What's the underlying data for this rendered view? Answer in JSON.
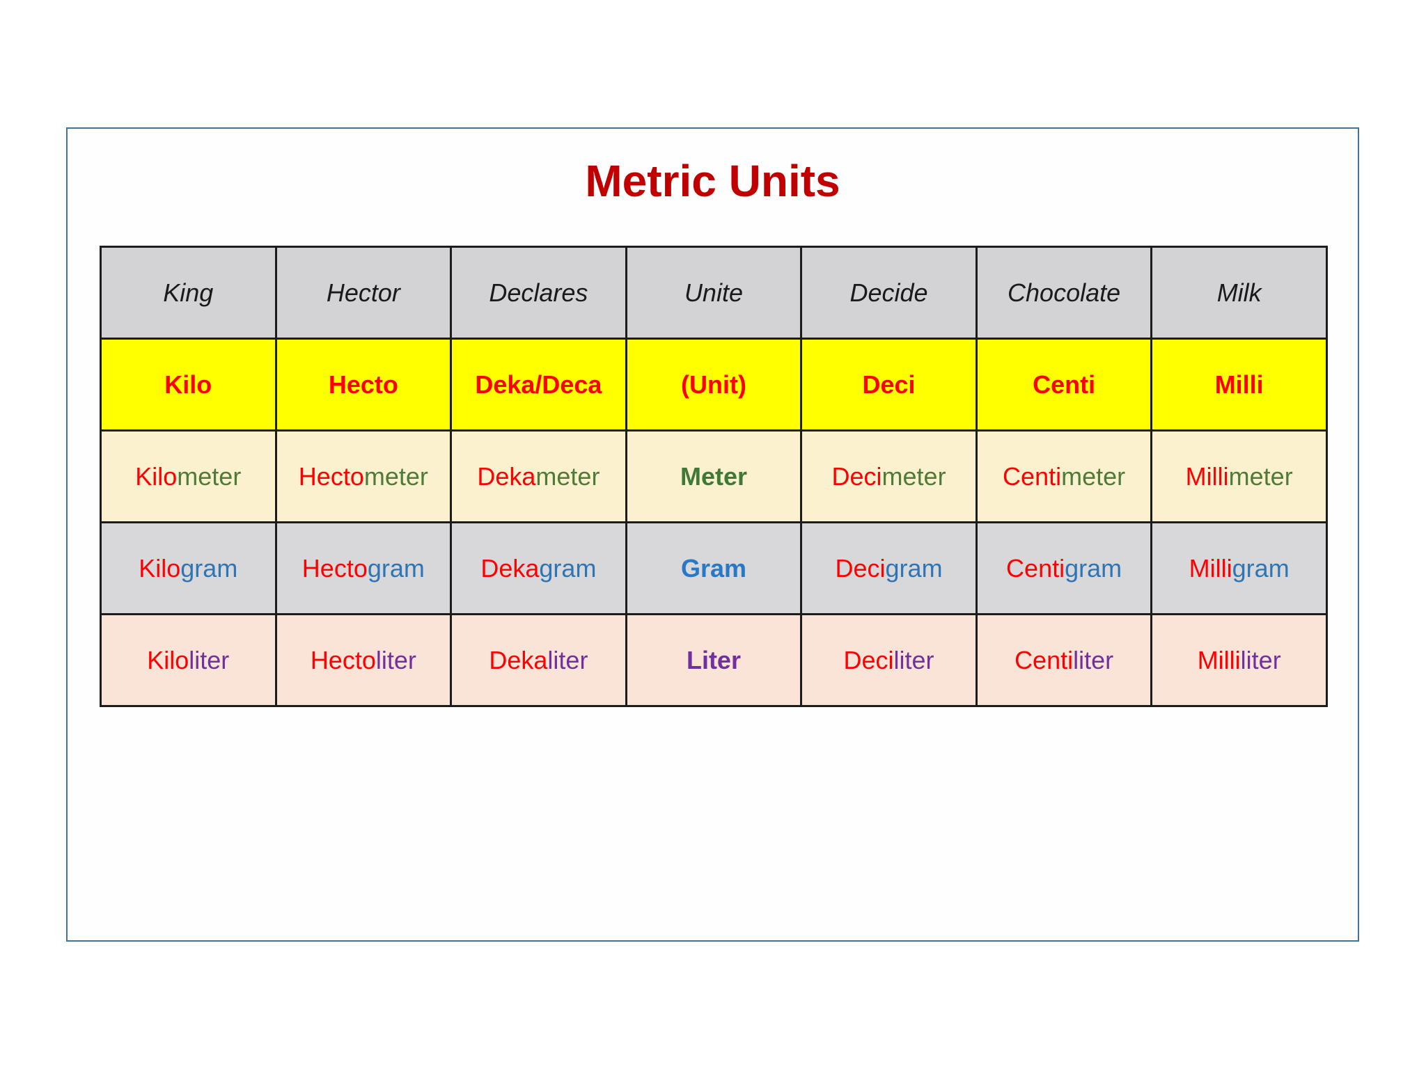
{
  "title": "Metric Units",
  "colors": {
    "title_red": "#c00000",
    "prefix_red": "#ff0000",
    "meter_green": "#4e7b38",
    "gram_blue": "#2e75b6",
    "liter_purple": "#7030a0",
    "row_yellow_bg": "#ffff00",
    "row_gray_bg": "#d3d3d6",
    "row_cream_bg": "#fbf1cf",
    "row_pink_bg": "#fae3d7",
    "frame_border": "#41719c",
    "cell_border": "#1c1c1c"
  },
  "table": {
    "mnemonic": [
      "King",
      "Hector",
      "Declares",
      "Unite",
      "Decide",
      "Chocolate",
      "Milk"
    ],
    "prefixes": [
      "Kilo",
      "Hecto",
      "Deka/Deca",
      "(Unit)",
      "Deci",
      "Centi",
      "Milli"
    ],
    "units": [
      {
        "name": "meter",
        "cells": [
          {
            "prefix": "Kilo",
            "suffix": "meter"
          },
          {
            "prefix": "Hecto",
            "suffix": "meter"
          },
          {
            "prefix": "Deka",
            "suffix": "meter"
          },
          {
            "base": "Meter"
          },
          {
            "prefix": "Deci",
            "suffix": "meter"
          },
          {
            "prefix": "Centi",
            "suffix": "meter"
          },
          {
            "prefix": "Milli",
            "suffix": "meter"
          }
        ]
      },
      {
        "name": "gram",
        "cells": [
          {
            "prefix": "Kilo",
            "suffix": "gram"
          },
          {
            "prefix": "Hecto",
            "suffix": "gram"
          },
          {
            "prefix": "Deka",
            "suffix": "gram"
          },
          {
            "base": "Gram"
          },
          {
            "prefix": "Deci",
            "suffix": "gram"
          },
          {
            "prefix": "Centi",
            "suffix": "gram"
          },
          {
            "prefix": "Milli",
            "suffix": "gram"
          }
        ]
      },
      {
        "name": "liter",
        "cells": [
          {
            "prefix": "Kilo",
            "suffix": "liter"
          },
          {
            "prefix": "Hecto",
            "suffix": "liter"
          },
          {
            "prefix": "Deka",
            "suffix": "liter"
          },
          {
            "base": "Liter"
          },
          {
            "prefix": "Deci",
            "suffix": "liter"
          },
          {
            "prefix": "Centi",
            "suffix": "liter"
          },
          {
            "prefix": "Milli",
            "suffix": "liter"
          }
        ]
      }
    ]
  }
}
